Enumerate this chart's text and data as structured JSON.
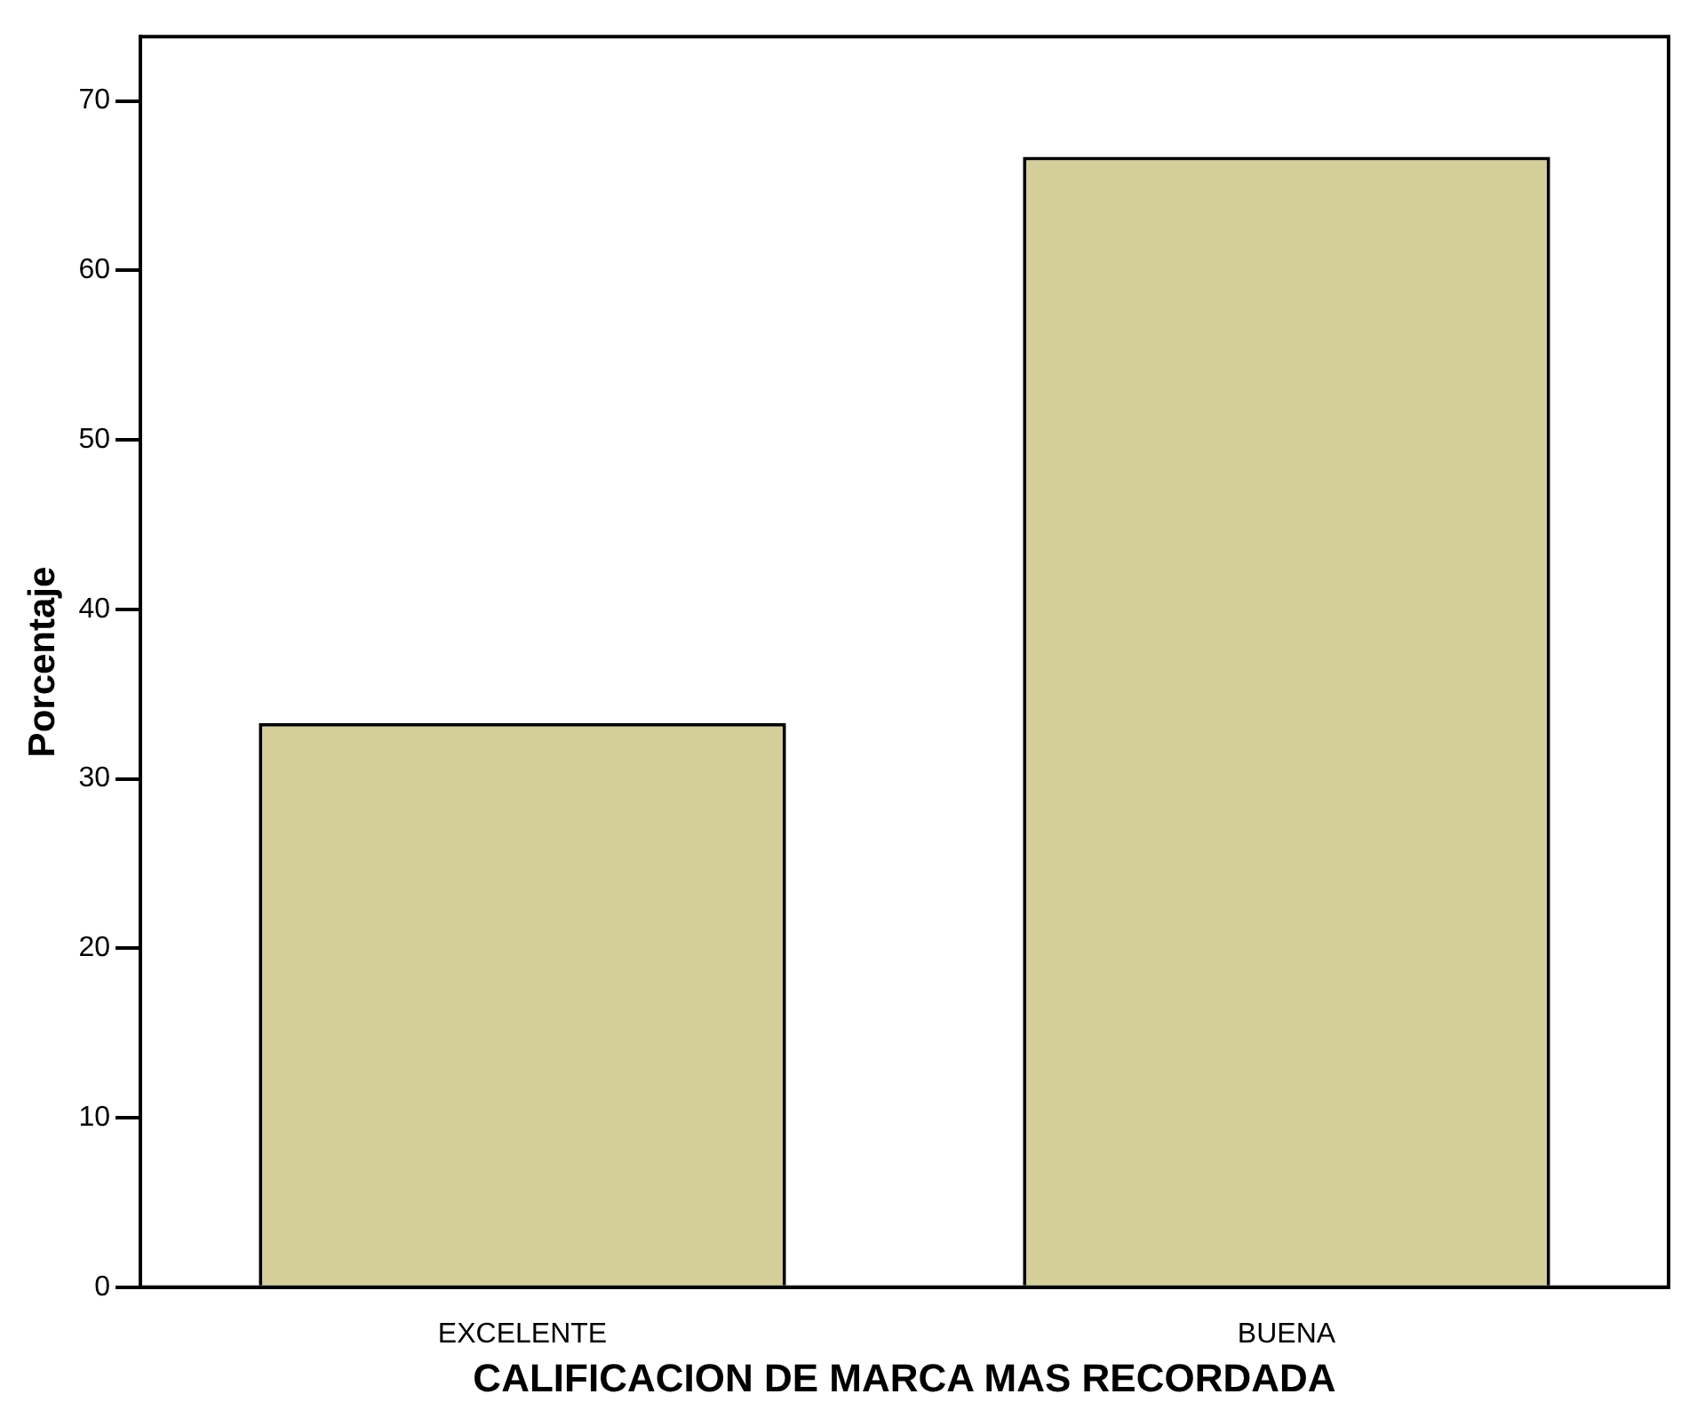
{
  "chart_data": {
    "type": "bar",
    "xlabel": "CALIFICACION DE MARCA MAS RECORDADA",
    "ylabel": "Porcentaje",
    "categories": [
      "EXCELENTE",
      "BUENA"
    ],
    "values": [
      33.3,
      66.7
    ],
    "color": "#d3ce9a",
    "ylim": [
      0,
      73.8
    ],
    "yticks": [
      0,
      10,
      20,
      30,
      40,
      50,
      60,
      70
    ],
    "grid": false,
    "legend": false
  }
}
